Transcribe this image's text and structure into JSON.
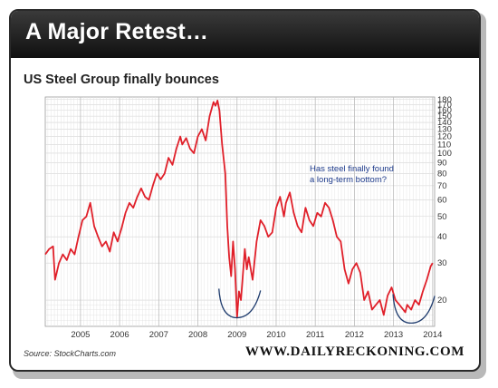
{
  "banner": {
    "title": "A Major Retest…"
  },
  "chart_data": {
    "type": "line",
    "title": "US Steel Group finally bounces",
    "y_scale": "log",
    "ylim": [
      15,
      185
    ],
    "xlim": [
      2004.1,
      2014.05
    ],
    "y_ticks": [
      20,
      30,
      40,
      50,
      60,
      70,
      80,
      90,
      100,
      110,
      120,
      130,
      140,
      150,
      160,
      170,
      180
    ],
    "y_tick_labels": [
      "20",
      "30",
      "40",
      "50",
      "60",
      "70",
      "80",
      "90",
      "100",
      "110",
      "120",
      "130",
      "140",
      "150",
      "160",
      "170",
      "180"
    ],
    "x_ticks": [
      2005,
      2006,
      2007,
      2008,
      2009,
      2010,
      2011,
      2012,
      2013,
      2014
    ],
    "x_tick_labels": [
      "2005",
      "2006",
      "2007",
      "2008",
      "2009",
      "2010",
      "2011",
      "2012",
      "2013",
      "2014"
    ],
    "grid": true,
    "annotation": {
      "text_line1": "Has steel finally found",
      "text_line2": "a long-term bottom?"
    },
    "highlights": [
      {
        "center_x": 2009.0,
        "y": 17.5
      },
      {
        "center_x": 2013.45,
        "y": 16.5
      }
    ],
    "series": [
      {
        "color": "#e0202a",
        "x": [
          2004.1,
          2004.2,
          2004.3,
          2004.35,
          2004.45,
          2004.55,
          2004.65,
          2004.75,
          2004.85,
          2004.95,
          2005.05,
          2005.15,
          2005.25,
          2005.35,
          2005.45,
          2005.55,
          2005.65,
          2005.75,
          2005.85,
          2005.95,
          2006.05,
          2006.15,
          2006.25,
          2006.35,
          2006.45,
          2006.55,
          2006.65,
          2006.75,
          2006.85,
          2006.95,
          2007.05,
          2007.15,
          2007.25,
          2007.35,
          2007.45,
          2007.55,
          2007.6,
          2007.7,
          2007.8,
          2007.9,
          2008.0,
          2008.1,
          2008.2,
          2008.3,
          2008.4,
          2008.45,
          2008.5,
          2008.55,
          2008.62,
          2008.7,
          2008.75,
          2008.8,
          2008.85,
          2008.9,
          2008.95,
          2009.0,
          2009.05,
          2009.1,
          2009.2,
          2009.25,
          2009.3,
          2009.4,
          2009.5,
          2009.6,
          2009.7,
          2009.8,
          2009.9,
          2010.0,
          2010.1,
          2010.2,
          2010.25,
          2010.35,
          2010.45,
          2010.55,
          2010.65,
          2010.75,
          2010.85,
          2010.95,
          2011.05,
          2011.15,
          2011.25,
          2011.35,
          2011.45,
          2011.55,
          2011.65,
          2011.75,
          2011.85,
          2011.95,
          2012.05,
          2012.15,
          2012.25,
          2012.35,
          2012.45,
          2012.55,
          2012.65,
          2012.75,
          2012.85,
          2012.95,
          2013.05,
          2013.15,
          2013.25,
          2013.3,
          2013.35,
          2013.45,
          2013.55,
          2013.65,
          2013.75,
          2013.85,
          2013.95,
          2014.0
        ],
        "y": [
          33,
          35,
          36,
          25,
          30,
          33,
          31,
          35,
          33,
          40,
          48,
          50,
          58,
          45,
          40,
          36,
          38,
          34,
          42,
          38,
          44,
          52,
          58,
          55,
          62,
          68,
          62,
          60,
          70,
          80,
          75,
          80,
          95,
          88,
          105,
          120,
          110,
          118,
          105,
          100,
          120,
          130,
          115,
          150,
          175,
          168,
          178,
          160,
          110,
          80,
          45,
          32,
          26,
          38,
          28,
          16.5,
          22,
          20,
          35,
          28,
          32,
          25,
          38,
          48,
          45,
          40,
          42,
          55,
          62,
          50,
          58,
          65,
          52,
          45,
          42,
          55,
          48,
          45,
          52,
          50,
          58,
          55,
          48,
          40,
          38,
          28,
          24,
          28,
          30,
          27,
          20,
          22,
          18,
          19,
          20,
          17,
          21,
          23,
          20,
          19,
          18,
          17.5,
          19,
          18,
          20,
          19,
          22,
          25,
          29,
          30
        ]
      }
    ]
  },
  "footer": {
    "source": "Source: StockCharts.com",
    "brand": "WWW.DAILYRECKONING.COM"
  }
}
